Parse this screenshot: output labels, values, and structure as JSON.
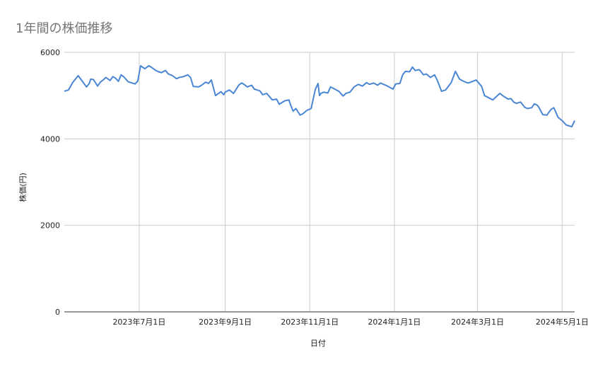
{
  "chart_data": {
    "type": "line",
    "title": "1年間の株価推移",
    "xlabel": "日付",
    "ylabel": "株価(円)",
    "ylim": [
      0,
      6000
    ],
    "yticks": [
      "0",
      "2000",
      "4000",
      "6000"
    ],
    "xlim": [
      "2023-05-08",
      "2024-05-10"
    ],
    "xticks": [
      {
        "date": "2023-07-01",
        "label": "2023年7月1日"
      },
      {
        "date": "2023-09-01",
        "label": "2023年9月1日"
      },
      {
        "date": "2023-11-01",
        "label": "2023年11月1日"
      },
      {
        "date": "2024-01-01",
        "label": "2024年1月1日"
      },
      {
        "date": "2024-03-01",
        "label": "2024年3月1日"
      },
      {
        "date": "2024-05-01",
        "label": "2024年5月1日"
      }
    ],
    "grid": true,
    "legend": "none",
    "color": "#4a86d4",
    "series": [
      {
        "x": [
          "2023-05-08",
          "2023-05-11",
          "2023-05-14",
          "2023-05-18",
          "2023-05-24",
          "2023-05-26",
          "2023-05-27",
          "2023-05-29",
          "2023-06-01",
          "2023-06-03",
          "2023-06-05",
          "2023-06-07",
          "2023-06-10",
          "2023-06-12",
          "2023-06-14",
          "2023-06-16",
          "2023-06-18",
          "2023-06-20",
          "2023-06-23",
          "2023-06-25",
          "2023-06-26",
          "2023-06-28",
          "2023-06-30",
          "2023-07-02",
          "2023-07-05",
          "2023-07-08",
          "2023-07-10",
          "2023-07-13",
          "2023-07-15",
          "2023-07-17",
          "2023-07-20",
          "2023-07-22",
          "2023-07-25",
          "2023-07-28",
          "2023-07-30",
          "2023-08-02",
          "2023-08-05",
          "2023-08-07",
          "2023-08-09",
          "2023-08-13",
          "2023-08-15",
          "2023-08-18",
          "2023-08-20",
          "2023-08-22",
          "2023-08-25",
          "2023-08-29",
          "2023-08-31",
          "2023-09-01",
          "2023-09-04",
          "2023-09-07",
          "2023-09-11",
          "2023-09-13",
          "2023-09-15",
          "2023-09-17",
          "2023-09-20",
          "2023-09-22",
          "2023-09-26",
          "2023-09-28",
          "2023-10-01",
          "2023-10-05",
          "2023-10-08",
          "2023-10-10",
          "2023-10-14",
          "2023-10-17",
          "2023-10-18",
          "2023-10-20",
          "2023-10-22",
          "2023-10-25",
          "2023-10-27",
          "2023-10-30",
          "2023-11-02",
          "2023-11-05",
          "2023-11-07",
          "2023-11-08",
          "2023-11-09",
          "2023-11-11",
          "2023-11-14",
          "2023-11-16",
          "2023-11-19",
          "2023-11-22",
          "2023-11-25",
          "2023-11-27",
          "2023-11-30",
          "2023-12-03",
          "2023-12-06",
          "2023-12-09",
          "2023-12-12",
          "2023-12-14",
          "2023-12-17",
          "2023-12-20",
          "2023-12-22",
          "2023-12-25",
          "2023-12-27",
          "2023-12-31",
          "2024-01-02",
          "2024-01-05",
          "2024-01-07",
          "2024-01-09",
          "2024-01-12",
          "2024-01-14",
          "2024-01-16",
          "2024-01-19",
          "2024-01-22",
          "2024-01-24",
          "2024-01-27",
          "2024-01-30",
          "2024-02-01",
          "2024-02-04",
          "2024-02-07",
          "2024-02-11",
          "2024-02-14",
          "2024-02-17",
          "2024-02-20",
          "2024-02-23",
          "2024-02-25",
          "2024-02-29",
          "2024-03-04",
          "2024-03-06",
          "2024-03-09",
          "2024-03-12",
          "2024-03-14",
          "2024-03-17",
          "2024-03-20",
          "2024-03-23",
          "2024-03-25",
          "2024-03-27",
          "2024-03-29",
          "2024-04-01",
          "2024-04-04",
          "2024-04-06",
          "2024-04-09",
          "2024-04-11",
          "2024-04-13",
          "2024-04-14",
          "2024-04-17",
          "2024-04-20",
          "2024-04-23",
          "2024-04-25",
          "2024-04-28",
          "2024-05-01",
          "2024-05-04",
          "2024-05-06",
          "2024-05-08",
          "2024-05-10"
        ],
        "y": [
          5100,
          5130,
          5300,
          5460,
          5200,
          5280,
          5380,
          5370,
          5220,
          5310,
          5360,
          5420,
          5350,
          5440,
          5400,
          5330,
          5480,
          5430,
          5320,
          5300,
          5290,
          5270,
          5340,
          5690,
          5620,
          5690,
          5650,
          5580,
          5550,
          5530,
          5580,
          5500,
          5460,
          5390,
          5420,
          5440,
          5480,
          5420,
          5210,
          5200,
          5240,
          5310,
          5280,
          5360,
          5000,
          5090,
          5020,
          5080,
          5130,
          5050,
          5250,
          5290,
          5250,
          5200,
          5240,
          5150,
          5110,
          5020,
          5050,
          4900,
          4920,
          4800,
          4880,
          4900,
          4800,
          4640,
          4700,
          4550,
          4580,
          4660,
          4700,
          5140,
          5280,
          5000,
          5050,
          5080,
          5060,
          5200,
          5150,
          5100,
          4990,
          5050,
          5080,
          5200,
          5260,
          5220,
          5300,
          5260,
          5290,
          5240,
          5290,
          5250,
          5220,
          5150,
          5270,
          5280,
          5480,
          5560,
          5550,
          5660,
          5580,
          5600,
          5480,
          5500,
          5420,
          5480,
          5350,
          5100,
          5130,
          5300,
          5560,
          5380,
          5330,
          5290,
          5310,
          5360,
          5210,
          5000,
          4950,
          4900,
          4960,
          5050,
          4980,
          4920,
          4930,
          4850,
          4820,
          4850,
          4730,
          4700,
          4720,
          4810,
          4780,
          4740,
          4560,
          4550,
          4680,
          4720,
          4500,
          4420,
          4320,
          4300,
          4280,
          4420
        ]
      }
    ]
  }
}
